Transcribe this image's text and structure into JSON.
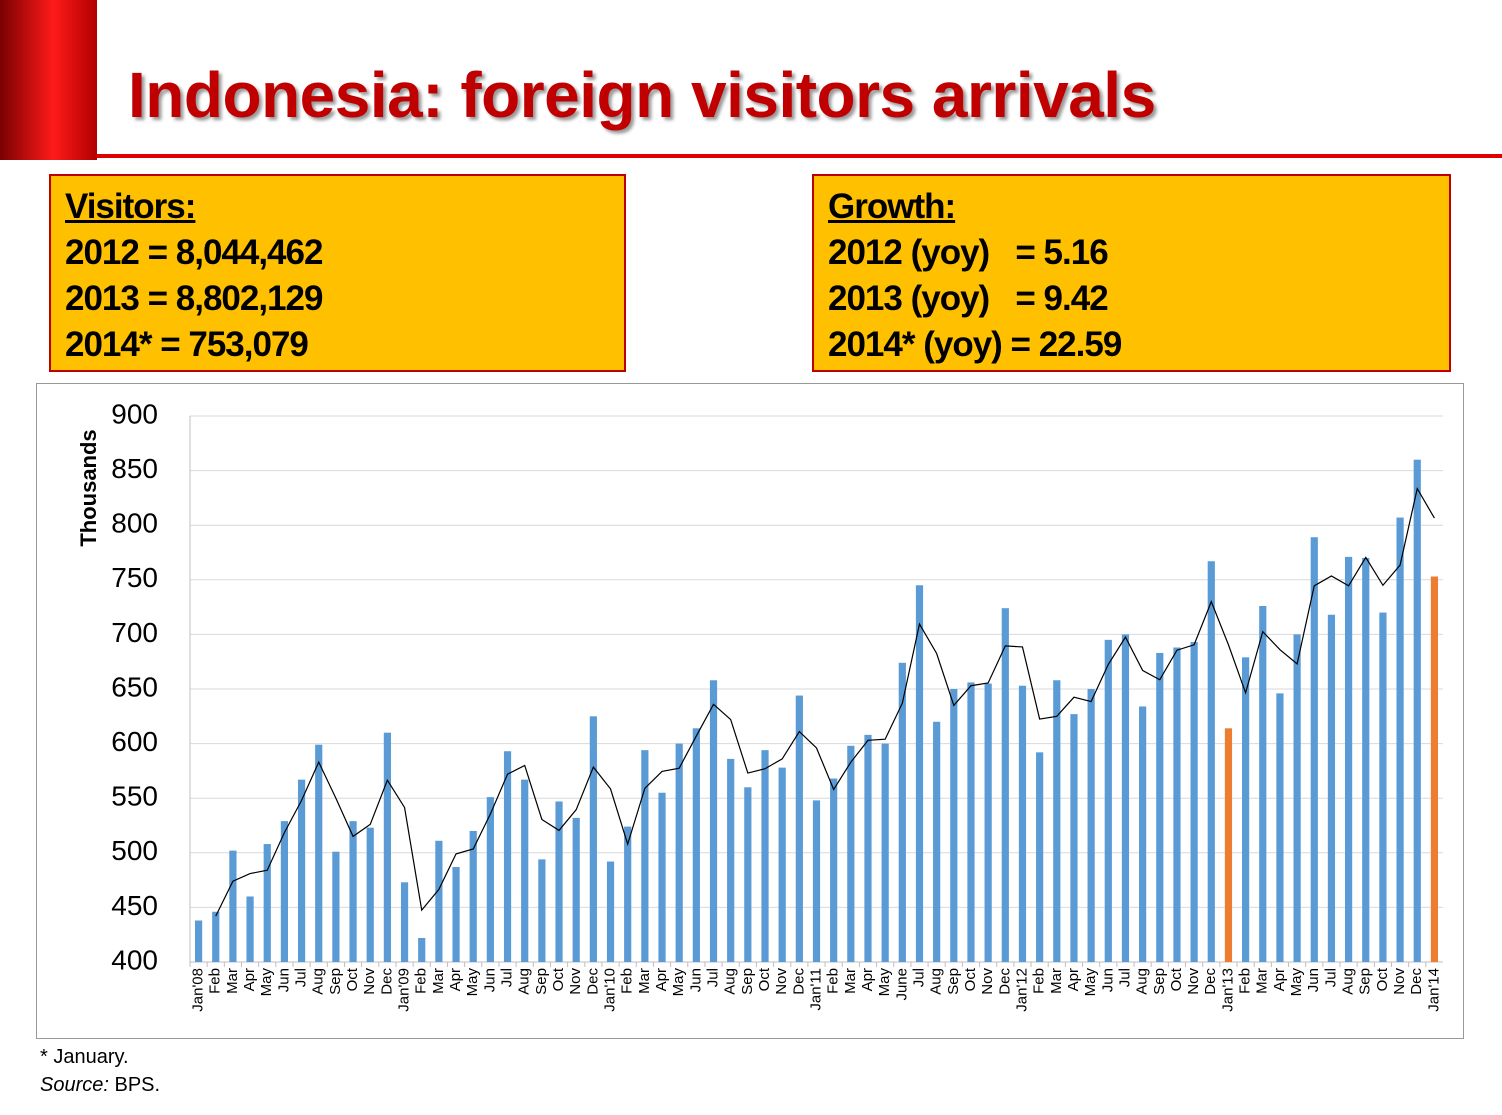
{
  "title": "Indonesia: foreign visitors arrivals",
  "boxes": [
    {
      "heading": "Visitors:",
      "lines": [
        "2012 = 8,044,462",
        "2013 = 8,802,129",
        "2014* = 753,079"
      ]
    },
    {
      "heading": "Growth:",
      "lines": [
        "2012 (yoy)   = 5.16",
        "2013 (yoy)   = 9.42",
        "2014* (yoy) = 22.59"
      ]
    }
  ],
  "footnote": "* January.",
  "source_label": "Source:",
  "source": "BPS.",
  "chart_data": {
    "type": "bar",
    "y_label": "Thousands",
    "ylim": [
      400,
      900
    ],
    "yticks": [
      400,
      450,
      500,
      550,
      600,
      650,
      700,
      750,
      800,
      850,
      900
    ],
    "grid": true,
    "categories": [
      "Jan'08",
      "Feb",
      "Mar",
      "Apr",
      "May",
      "Jun",
      "Jul",
      "Aug",
      "Sep",
      "Oct",
      "Nov",
      "Dec",
      "Jan'09",
      "Feb",
      "Mar",
      "Apr",
      "May",
      "Jun",
      "Jul",
      "Aug",
      "Sep",
      "Oct",
      "Nov",
      "Dec",
      "Jan'10",
      "Feb",
      "Mar",
      "Apr",
      "May",
      "Jun",
      "Jul",
      "Aug",
      "Sep",
      "Oct",
      "Nov",
      "Dec",
      "Jan'11",
      "Feb",
      "Mar",
      "Apr",
      "May",
      "June",
      "Jul",
      "Aug",
      "Sep",
      "Oct",
      "Nov",
      "Dec",
      "Jan'12",
      "Feb",
      "Mar",
      "Apr",
      "May",
      "Jun",
      "Jul",
      "Aug",
      "Sep",
      "Oct",
      "Nov",
      "Dec",
      "Jan'13",
      "Feb",
      "Mar",
      "Apr",
      "May",
      "Jun",
      "Jul",
      "Aug",
      "Sep",
      "Oct",
      "Nov",
      "Dec",
      "Jan'14"
    ],
    "series": [
      {
        "type": "bar",
        "color": "#5b9bd5",
        "colors": [
          "#5b9bd5",
          "#5b9bd5",
          "#5b9bd5",
          "#5b9bd5",
          "#5b9bd5",
          "#5b9bd5",
          "#5b9bd5",
          "#5b9bd5",
          "#5b9bd5",
          "#5b9bd5",
          "#5b9bd5",
          "#5b9bd5",
          "#5b9bd5",
          "#5b9bd5",
          "#5b9bd5",
          "#5b9bd5",
          "#5b9bd5",
          "#5b9bd5",
          "#5b9bd5",
          "#5b9bd5",
          "#5b9bd5",
          "#5b9bd5",
          "#5b9bd5",
          "#5b9bd5",
          "#5b9bd5",
          "#5b9bd5",
          "#5b9bd5",
          "#5b9bd5",
          "#5b9bd5",
          "#5b9bd5",
          "#5b9bd5",
          "#5b9bd5",
          "#5b9bd5",
          "#5b9bd5",
          "#5b9bd5",
          "#5b9bd5",
          "#5b9bd5",
          "#5b9bd5",
          "#5b9bd5",
          "#5b9bd5",
          "#5b9bd5",
          "#5b9bd5",
          "#5b9bd5",
          "#5b9bd5",
          "#5b9bd5",
          "#5b9bd5",
          "#5b9bd5",
          "#5b9bd5",
          "#5b9bd5",
          "#5b9bd5",
          "#5b9bd5",
          "#5b9bd5",
          "#5b9bd5",
          "#5b9bd5",
          "#5b9bd5",
          "#5b9bd5",
          "#5b9bd5",
          "#5b9bd5",
          "#5b9bd5",
          "#5b9bd5",
          "#ed7d31",
          "#5b9bd5",
          "#5b9bd5",
          "#5b9bd5",
          "#5b9bd5",
          "#5b9bd5",
          "#5b9bd5",
          "#5b9bd5",
          "#5b9bd5",
          "#5b9bd5",
          "#5b9bd5",
          "#5b9bd5",
          "#ed7d31"
        ],
        "values": [
          438,
          446,
          502,
          460,
          508,
          529,
          567,
          599,
          501,
          529,
          523,
          610,
          473,
          422,
          511,
          487,
          520,
          551,
          593,
          567,
          494,
          547,
          532,
          625,
          492,
          524,
          594,
          555,
          600,
          614,
          658,
          586,
          560,
          594,
          578,
          644,
          548,
          568,
          598,
          608,
          600,
          674,
          745,
          620,
          650,
          656,
          655,
          724,
          653,
          592,
          658,
          627,
          650,
          695,
          700,
          634,
          683,
          688,
          693,
          767,
          614,
          679,
          726,
          646,
          700,
          789,
          718,
          771,
          770,
          720,
          807,
          860,
          753
        ]
      },
      {
        "type": "line",
        "color": "#000000",
        "values": [
          null,
          442,
          474,
          481,
          484,
          518.5,
          548,
          583,
          550,
          515,
          526,
          566.5,
          541.5,
          447.5,
          466.5,
          499,
          503.5,
          535.5,
          572,
          580,
          530.5,
          520.5,
          539.5,
          578.5,
          558.5,
          508,
          559,
          574.5,
          577.5,
          607,
          636,
          622,
          573,
          577,
          586,
          611,
          596,
          558,
          583,
          603,
          604,
          637,
          709.5,
          682.5,
          635,
          653,
          655.5,
          689.5,
          688.5,
          622.5,
          625,
          642.5,
          638.5,
          672.5,
          697.5,
          667,
          658.5,
          685.5,
          690.5,
          730,
          690.5,
          646.5,
          702.5,
          686,
          673,
          744.5,
          753.5,
          744.5,
          770.5,
          745,
          763.5,
          833.5,
          806.5
        ]
      }
    ]
  }
}
